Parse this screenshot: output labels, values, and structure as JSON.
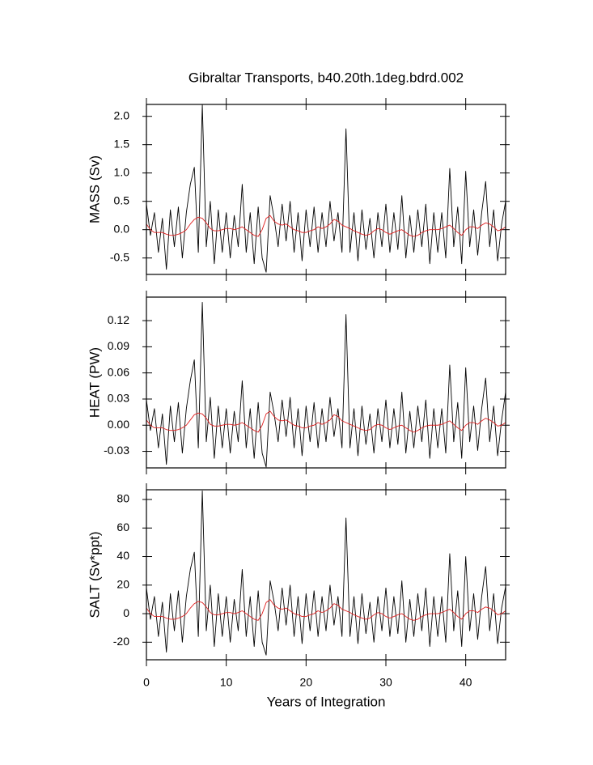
{
  "chart_data": [
    {
      "type": "line",
      "title": "Gibraltar Transports, b40.20th.1deg.bdrd.002",
      "ylabel": "MASS (Sv)",
      "x": [
        0,
        0.5,
        1,
        1.5,
        2,
        2.5,
        3,
        3.5,
        4,
        4.5,
        5,
        5.5,
        6,
        6.5,
        7,
        7.5,
        8,
        8.5,
        9,
        9.5,
        10,
        10.5,
        11,
        11.5,
        12,
        12.5,
        13,
        13.5,
        14,
        14.5,
        15,
        15.5,
        16,
        16.5,
        17,
        17.5,
        18,
        18.5,
        19,
        19.5,
        20,
        20.5,
        21,
        21.5,
        22,
        22.5,
        23,
        23.5,
        24,
        24.5,
        25,
        25.5,
        26,
        26.5,
        27,
        27.5,
        28,
        28.5,
        29,
        29.5,
        30,
        30.5,
        31,
        31.5,
        32,
        32.5,
        33,
        33.5,
        34,
        34.5,
        35,
        35.5,
        36,
        36.5,
        37,
        37.5,
        38,
        38.5,
        39,
        39.5,
        40,
        40.5,
        41,
        41.5,
        42,
        42.5,
        43,
        43.5,
        44,
        44.5,
        45
      ],
      "xlim": [
        0,
        45
      ],
      "xticks": [
        0,
        10,
        20,
        30,
        40
      ],
      "ylim": [
        -0.79,
        2.21
      ],
      "yticks": [
        -0.5,
        {
          "value": 0,
          "label": "0.0"
        },
        0.5,
        {
          "value": 1,
          "label": "1.0"
        },
        1.5,
        {
          "value": 2,
          "label": "2.0"
        }
      ],
      "series": [
        {
          "color": "#000000",
          "values": [
            0.45,
            -0.1,
            0.3,
            -0.4,
            0.2,
            -0.7,
            0.35,
            -0.3,
            0.4,
            -0.5,
            0.3,
            0.8,
            1.1,
            -0.4,
            2.2,
            -0.3,
            0.5,
            -0.6,
            0.35,
            -0.4,
            0.3,
            -0.5,
            0.25,
            -0.3,
            0.8,
            -0.4,
            0.3,
            -0.6,
            0.4,
            -0.5,
            -0.75,
            0.6,
            0.2,
            -0.3,
            0.45,
            -0.2,
            0.5,
            -0.4,
            0.3,
            -0.55,
            0.35,
            -0.3,
            0.4,
            -0.4,
            0.3,
            -0.3,
            0.5,
            -0.2,
            0.3,
            -0.4,
            1.78,
            -0.4,
            0.3,
            -0.55,
            0.35,
            -0.35,
            0.2,
            -0.5,
            0.3,
            -0.3,
            0.45,
            -0.4,
            0.3,
            -0.35,
            0.6,
            -0.5,
            0.25,
            -0.4,
            0.35,
            -0.3,
            0.45,
            -0.6,
            0.3,
            -0.4,
            0.3,
            -0.5,
            1.08,
            -0.3,
            0.4,
            -0.6,
            1.03,
            -0.3,
            0.35,
            -0.45,
            0.3,
            0.85,
            -0.3,
            0.35,
            -0.55,
            0.1,
            0.5
          ]
        },
        {
          "color": "#e02020",
          "values": [
            0.1,
            0,
            -0.05,
            -0.05,
            -0.05,
            -0.08,
            -0.1,
            -0.1,
            -0.08,
            -0.05,
            0,
            0.1,
            0.18,
            0.22,
            0.2,
            0.12,
            0.02,
            -0.02,
            -0.02,
            0,
            0.02,
            0.02,
            0,
            0.02,
            0.05,
            0,
            -0.05,
            -0.1,
            -0.12,
            0,
            0.2,
            0.25,
            0.15,
            0.1,
            0.08,
            0.1,
            0.05,
            0,
            -0.02,
            -0.05,
            -0.05,
            -0.02,
            0,
            0.05,
            0.02,
            0.05,
            0.1,
            0.18,
            0.15,
            0.08,
            0.05,
            0.02,
            -0.02,
            -0.05,
            -0.08,
            -0.1,
            -0.08,
            -0.02,
            0.02,
            0,
            -0.05,
            -0.08,
            -0.05,
            -0.02,
            0,
            -0.05,
            -0.1,
            -0.12,
            -0.1,
            -0.05,
            -0.02,
            0,
            0,
            0,
            0.02,
            0.05,
            0.08,
            0.02,
            -0.05,
            -0.1,
            0,
            0.05,
            0.05,
            0.02,
            0.08,
            0.12,
            0.1,
            0.05,
            -0.02,
            0,
            0.05
          ]
        }
      ]
    },
    {
      "type": "line",
      "ylabel": "HEAT (PW)",
      "x": [
        0,
        0.5,
        1,
        1.5,
        2,
        2.5,
        3,
        3.5,
        4,
        4.5,
        5,
        5.5,
        6,
        6.5,
        7,
        7.5,
        8,
        8.5,
        9,
        9.5,
        10,
        10.5,
        11,
        11.5,
        12,
        12.5,
        13,
        13.5,
        14,
        14.5,
        15,
        15.5,
        16,
        16.5,
        17,
        17.5,
        18,
        18.5,
        19,
        19.5,
        20,
        20.5,
        21,
        21.5,
        22,
        22.5,
        23,
        23.5,
        24,
        24.5,
        25,
        25.5,
        26,
        26.5,
        27,
        27.5,
        28,
        28.5,
        29,
        29.5,
        30,
        30.5,
        31,
        31.5,
        32,
        32.5,
        33,
        33.5,
        34,
        34.5,
        35,
        35.5,
        36,
        36.5,
        37,
        37.5,
        38,
        38.5,
        39,
        39.5,
        40,
        40.5,
        41,
        41.5,
        42,
        42.5,
        43,
        43.5,
        44,
        44.5,
        45
      ],
      "xlim": [
        0,
        45
      ],
      "xticks": [
        0,
        10,
        20,
        30,
        40
      ],
      "ylim": [
        -0.049,
        0.147
      ],
      "yticks": [
        -0.03,
        {
          "value": 0,
          "label": "0.00"
        },
        0.03,
        0.06,
        0.09,
        0.12
      ],
      "series": [
        {
          "color": "#000000",
          "values": [
            0.029,
            -0.006,
            0.019,
            -0.026,
            0.013,
            -0.045,
            0.022,
            -0.019,
            0.026,
            -0.032,
            0.019,
            0.051,
            0.075,
            -0.026,
            0.141,
            -0.019,
            0.032,
            -0.038,
            0.022,
            -0.026,
            0.019,
            -0.032,
            0.016,
            -0.019,
            0.051,
            -0.026,
            0.019,
            -0.038,
            0.026,
            -0.032,
            -0.048,
            0.038,
            0.013,
            -0.019,
            0.029,
            -0.013,
            0.032,
            -0.026,
            0.019,
            -0.035,
            0.022,
            -0.019,
            0.026,
            -0.026,
            0.019,
            -0.019,
            0.032,
            -0.013,
            0.019,
            -0.026,
            0.127,
            -0.026,
            0.019,
            -0.035,
            0.022,
            -0.022,
            0.013,
            -0.032,
            0.019,
            -0.019,
            0.029,
            -0.026,
            0.019,
            -0.022,
            0.038,
            -0.032,
            0.016,
            -0.026,
            0.022,
            -0.019,
            0.029,
            -0.038,
            0.019,
            -0.026,
            0.019,
            -0.032,
            0.069,
            -0.019,
            0.026,
            -0.038,
            0.066,
            -0.019,
            0.022,
            -0.029,
            0.019,
            0.054,
            -0.019,
            0.022,
            -0.035,
            0.006,
            0.038
          ]
        },
        {
          "color": "#e02020",
          "values": [
            0.006,
            0,
            -0.003,
            -0.003,
            -0.003,
            -0.005,
            -0.006,
            -0.006,
            -0.005,
            -0.003,
            0,
            0.006,
            0.012,
            0.014,
            0.013,
            0.008,
            0.001,
            -0.001,
            -0.001,
            0,
            0.001,
            0.001,
            0,
            0.001,
            0.003,
            0,
            -0.003,
            -0.006,
            -0.008,
            0,
            0.013,
            0.016,
            0.01,
            0.006,
            0.005,
            0.006,
            0.003,
            0,
            -0.001,
            -0.003,
            -0.003,
            -0.001,
            0,
            0.003,
            0.001,
            0.003,
            0.006,
            0.012,
            0.01,
            0.005,
            0.003,
            0.001,
            -0.001,
            -0.003,
            -0.005,
            -0.006,
            -0.005,
            -0.001,
            0.001,
            0,
            -0.003,
            -0.005,
            -0.003,
            -0.001,
            0,
            -0.003,
            -0.006,
            -0.008,
            -0.006,
            -0.003,
            -0.001,
            0,
            0,
            0,
            0.001,
            0.003,
            0.005,
            0.001,
            -0.003,
            -0.006,
            0,
            0.003,
            0.003,
            0.001,
            0.005,
            0.008,
            0.006,
            0.003,
            -0.001,
            0,
            0.003
          ]
        }
      ]
    },
    {
      "type": "line",
      "ylabel": "SALT (Sv*ppt)",
      "xlabel": "Years of Integration",
      "x": [
        0,
        0.5,
        1,
        1.5,
        2,
        2.5,
        3,
        3.5,
        4,
        4.5,
        5,
        5.5,
        6,
        6.5,
        7,
        7.5,
        8,
        8.5,
        9,
        9.5,
        10,
        10.5,
        11,
        11.5,
        12,
        12.5,
        13,
        13.5,
        14,
        14.5,
        15,
        15.5,
        16,
        16.5,
        17,
        17.5,
        18,
        18.5,
        19,
        19.5,
        20,
        20.5,
        21,
        21.5,
        22,
        22.5,
        23,
        23.5,
        24,
        24.5,
        25,
        25.5,
        26,
        26.5,
        27,
        27.5,
        28,
        28.5,
        29,
        29.5,
        30,
        30.5,
        31,
        31.5,
        32,
        32.5,
        33,
        33.5,
        34,
        34.5,
        35,
        35.5,
        36,
        36.5,
        37,
        37.5,
        38,
        38.5,
        39,
        39.5,
        40,
        40.5,
        41,
        41.5,
        42,
        42.5,
        43,
        43.5,
        44,
        44.5,
        45
      ],
      "xlim": [
        0,
        45
      ],
      "xticks": [
        0,
        10,
        20,
        30,
        40
      ],
      "ylim": [
        -32.3,
        86.8
      ],
      "yticks": [
        -20,
        0,
        20,
        40,
        60,
        80
      ],
      "series": [
        {
          "color": "#000000",
          "values": [
            18,
            -4,
            12,
            -16,
            8,
            -27,
            14,
            -12,
            16,
            -20,
            12,
            31,
            43,
            -16,
            86,
            -12,
            20,
            -23,
            14,
            -16,
            12,
            -20,
            10,
            -12,
            31,
            -16,
            12,
            -23,
            16,
            -20,
            -29,
            23,
            8,
            -12,
            18,
            -8,
            20,
            -16,
            12,
            -21,
            14,
            -12,
            16,
            -16,
            12,
            -12,
            20,
            -8,
            12,
            -16,
            67,
            -16,
            12,
            -21,
            14,
            -14,
            8,
            -20,
            12,
            -12,
            18,
            -16,
            12,
            -14,
            23,
            -20,
            10,
            -16,
            14,
            -12,
            18,
            -23,
            12,
            -16,
            12,
            -20,
            42,
            -12,
            16,
            -23,
            40,
            -12,
            14,
            -18,
            12,
            33,
            -12,
            14,
            -21,
            4,
            19
          ]
        },
        {
          "color": "#e02020",
          "values": [
            3.9,
            0,
            -2,
            -2,
            -2,
            -3.1,
            -3.9,
            -3.9,
            -3.1,
            -2,
            0,
            3.9,
            7,
            8.6,
            7.8,
            4.7,
            0.8,
            -0.8,
            -0.8,
            0,
            0.8,
            0.8,
            0,
            0.8,
            2,
            0,
            -2,
            -3.9,
            -4.7,
            0,
            7.8,
            9.8,
            5.9,
            3.9,
            3.1,
            3.9,
            2,
            0,
            -0.8,
            -2,
            -2,
            -0.8,
            0,
            2,
            0.8,
            2,
            3.9,
            7,
            5.9,
            3.1,
            2,
            0.8,
            -0.8,
            -2,
            -3.1,
            -3.9,
            -3.1,
            -0.8,
            0.8,
            0,
            -2,
            -3.1,
            -2,
            -0.8,
            0,
            -2,
            -3.9,
            -4.7,
            -3.9,
            -2,
            -0.8,
            0,
            0,
            0,
            0.8,
            2,
            3.1,
            0.8,
            -2,
            -3.9,
            0,
            2,
            2,
            0.8,
            3.1,
            4.7,
            3.9,
            2,
            -0.8,
            0,
            2
          ]
        }
      ]
    }
  ]
}
